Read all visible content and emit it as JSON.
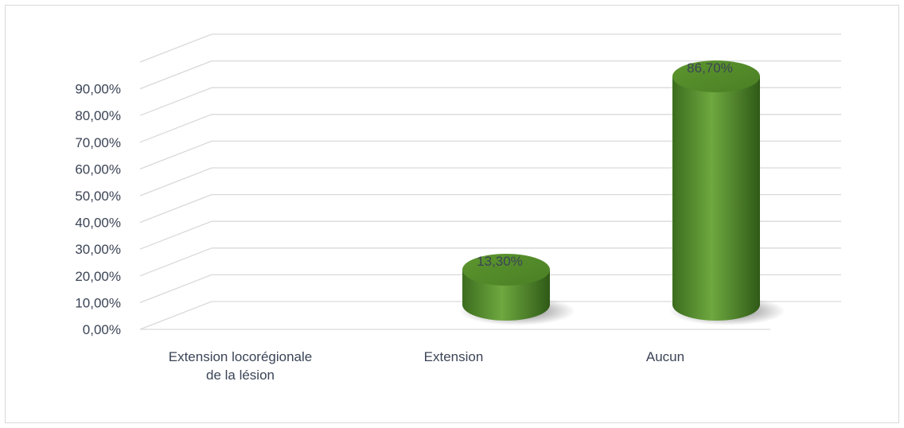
{
  "chart_data": {
    "type": "bar",
    "style": "3d-cylinder",
    "categories": [
      [
        "Extension locorégionale",
        "de la lésion"
      ],
      [
        "Extension"
      ],
      [
        "Aucun"
      ]
    ],
    "values": [
      0,
      13.3,
      86.7
    ],
    "data_labels": [
      "",
      "13,30%",
      "86,70%"
    ],
    "yticks": [
      "0,00%",
      "10,00%",
      "20,00%",
      "30,00%",
      "40,00%",
      "50,00%",
      "60,00%",
      "70,00%",
      "80,00%",
      "90,00%"
    ],
    "ylim": [
      0,
      100
    ],
    "title": "",
    "xlabel": "",
    "ylabel": "",
    "grid": true,
    "legend": "none",
    "colors": {
      "bar": "#5a9331",
      "bar_light": "#74b044",
      "bar_dark": "#2f5a17",
      "grid": "#d9d9d9",
      "text": "#3b4456"
    }
  }
}
